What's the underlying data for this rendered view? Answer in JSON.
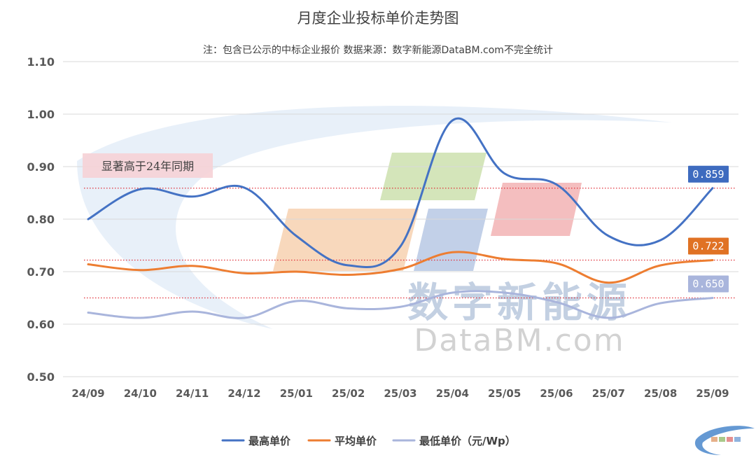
{
  "chart_data": {
    "type": "line",
    "title": "月度企业投标单价走势图",
    "subtitle": "注：包含已公示的中标企业报价 数据来源：数字新能源DataBM.com不完全统计",
    "categories": [
      "24/09",
      "24/10",
      "24/11",
      "24/12",
      "25/01",
      "25/02",
      "25/03",
      "25/04",
      "25/05",
      "25/06",
      "25/07",
      "25/08",
      "25/09"
    ],
    "ylim": [
      0.5,
      1.1
    ],
    "yticks": [
      "1.10",
      "1.00",
      "0.90",
      "0.80",
      "0.70",
      "0.60",
      "0.50"
    ],
    "ytick_values": [
      1.1,
      1.0,
      0.9,
      0.8,
      0.7,
      0.6,
      0.5
    ],
    "grid": true,
    "legend_position": "bottom",
    "series": [
      {
        "name": "最高单价",
        "color": "#4472c4",
        "values": [
          0.8,
          0.857,
          0.843,
          0.86,
          0.768,
          0.712,
          0.748,
          0.988,
          0.887,
          0.866,
          0.768,
          0.76,
          0.859
        ]
      },
      {
        "name": "平均单价",
        "color": "#ed7d31",
        "values": [
          0.714,
          0.703,
          0.711,
          0.697,
          0.7,
          0.694,
          0.705,
          0.737,
          0.724,
          0.716,
          0.679,
          0.712,
          0.722
        ]
      },
      {
        "name": "最低单价（元/Wp）",
        "color": "#a9b5dc",
        "values": [
          0.622,
          0.612,
          0.624,
          0.612,
          0.644,
          0.63,
          0.633,
          0.66,
          0.66,
          0.642,
          0.612,
          0.64,
          0.65
        ]
      }
    ],
    "reference_lines": [
      0.859,
      0.722,
      0.65
    ],
    "end_labels": [
      {
        "text": "0.859",
        "value": 0.859,
        "color": "#3e6bbf"
      },
      {
        "text": "0.722",
        "value": 0.722,
        "color": "#e07224"
      },
      {
        "text": "0.650",
        "value": 0.65,
        "color": "#a9b5dc"
      }
    ],
    "annotations": [
      {
        "text": "显著高于24年同期"
      }
    ]
  },
  "watermark": {
    "cn": "数字新能源",
    "en": "DataBM.com"
  }
}
